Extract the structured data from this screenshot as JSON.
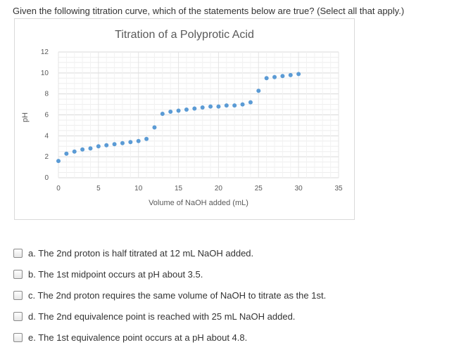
{
  "question": {
    "text": "Given the following titration curve, which of the statements below are true? (Select all that apply.)"
  },
  "chart_data": {
    "type": "scatter",
    "title": "Titration of a Polyprotic Acid",
    "xlabel": "Volume of NaOH added (mL)",
    "ylabel": "pH",
    "xlim": [
      0,
      35
    ],
    "ylim": [
      0,
      12
    ],
    "xticks": [
      0,
      5,
      10,
      15,
      20,
      25,
      30,
      35
    ],
    "yticks": [
      0,
      2,
      4,
      6,
      8,
      10,
      12
    ],
    "grid": true,
    "marker_color": "#5b9bd5",
    "series": [
      {
        "x": [
          0,
          1,
          2,
          3,
          4,
          5,
          6,
          7,
          8,
          9,
          10,
          11,
          12,
          13,
          14,
          15,
          16,
          17,
          18,
          19,
          20,
          21,
          22,
          23,
          24,
          25,
          26,
          27,
          28,
          29,
          30
        ],
        "y": [
          1.6,
          2.3,
          2.5,
          2.7,
          2.8,
          3.0,
          3.1,
          3.2,
          3.3,
          3.4,
          3.5,
          3.7,
          4.8,
          6.1,
          6.3,
          6.4,
          6.5,
          6.6,
          6.7,
          6.8,
          6.8,
          6.9,
          6.9,
          7.0,
          7.2,
          8.3,
          9.5,
          9.6,
          9.7,
          9.8,
          9.9
        ]
      }
    ]
  },
  "options": [
    {
      "label": "a. The 2nd proton is half titrated at 12 mL NaOH added."
    },
    {
      "label": "b. The 1st midpoint occurs at pH about 3.5."
    },
    {
      "label": "c. The 2nd proton requires the same volume of NaOH to titrate as the 1st."
    },
    {
      "label": "d. The 2nd equivalence point is reached with 25 mL NaOH added."
    },
    {
      "label": "e. The 1st equivalence point occurs at a pH about 4.8."
    }
  ]
}
